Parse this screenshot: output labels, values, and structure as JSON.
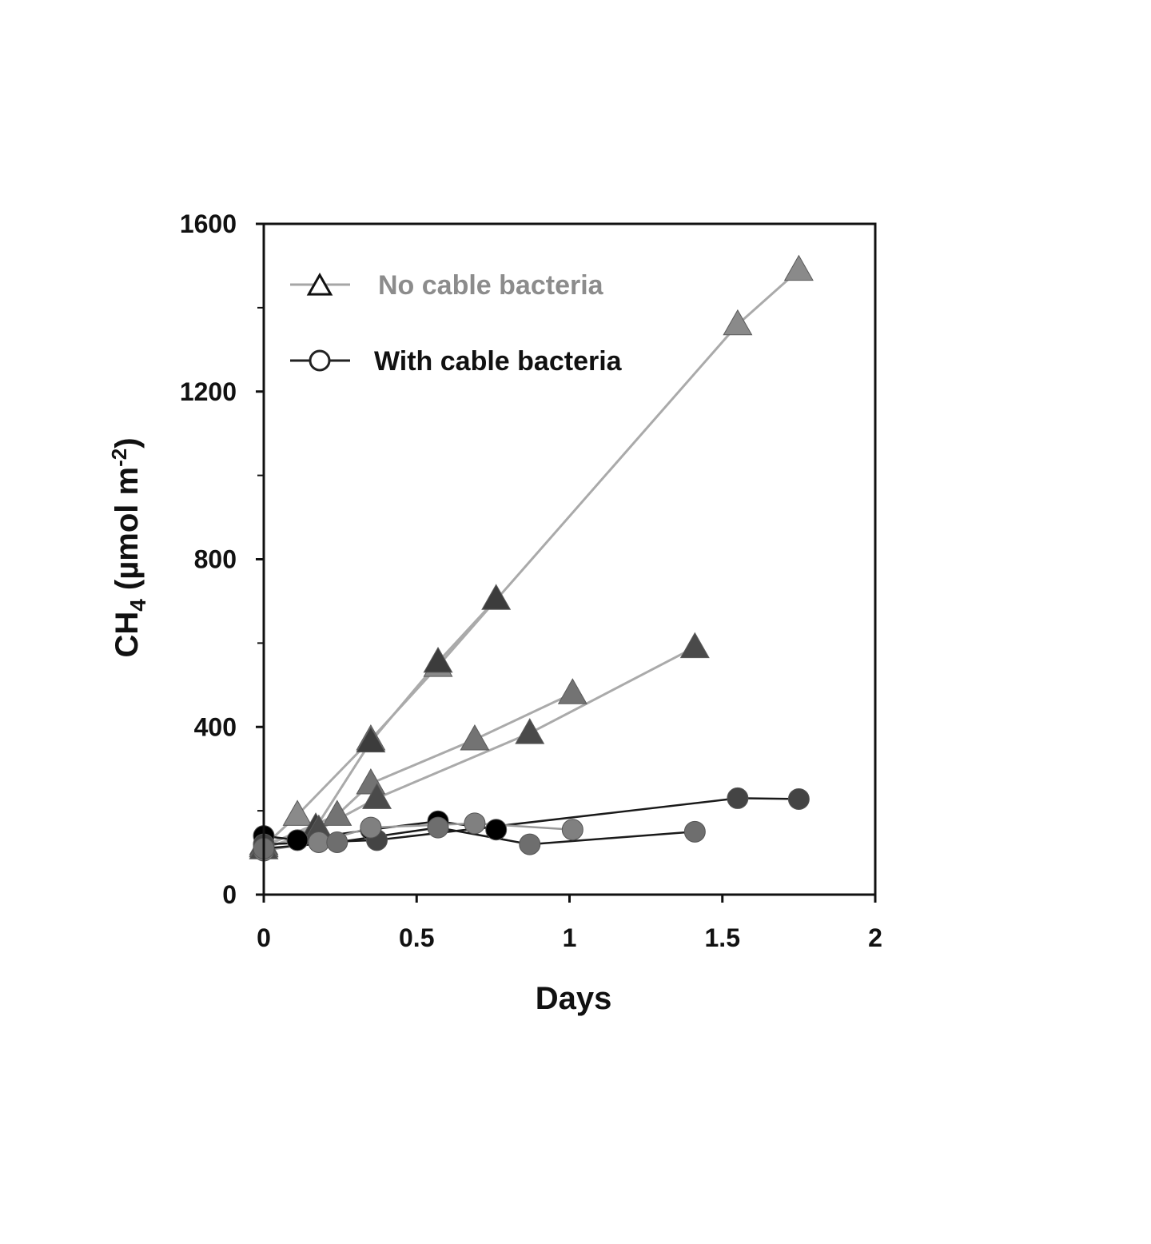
{
  "chart_data": {
    "type": "line",
    "xlabel": "Days",
    "ylabel": {
      "base": "CH",
      "sub": "4",
      "mid": " (µmol m",
      "sup": "-2",
      "end": ")"
    },
    "xlim": [
      0,
      2
    ],
    "ylim": [
      0,
      1600
    ],
    "x_ticks": [
      0,
      0.5,
      1,
      1.5,
      2
    ],
    "x_tick_labels": [
      "0",
      "0.5",
      "1",
      "1.5",
      "2"
    ],
    "y_ticks": [
      0,
      400,
      800,
      1200,
      1600
    ],
    "y_tick_labels": [
      "0",
      "400",
      "800",
      "1200",
      "1600"
    ],
    "y_minor_ticks": [
      200,
      600,
      1000,
      1400
    ],
    "grid": false,
    "legend_position": "top-left",
    "legend": [
      {
        "label": "No cable bacteria",
        "marker": "triangle",
        "line_color": "#a6a6a6",
        "text_color": "#8c8c8c"
      },
      {
        "label": "With cable bacteria",
        "marker": "circle",
        "line_color": "#222222",
        "text_color": "#111111"
      }
    ],
    "series": [
      {
        "group": "No cable bacteria",
        "marker": "triangle",
        "line_color": "#aaaaaa",
        "marker_color": "#8a8a8a",
        "x": [
          0,
          0.11,
          0.35,
          0.57,
          1.55,
          1.75
        ],
        "y": [
          115,
          190,
          370,
          545,
          1360,
          1490
        ]
      },
      {
        "group": "No cable bacteria",
        "marker": "triangle",
        "line_color": "#aaaaaa",
        "marker_color": "#3c3c3c",
        "x": [
          0,
          0.17,
          0.35,
          0.57,
          0.76
        ],
        "y": [
          120,
          160,
          365,
          555,
          705
        ]
      },
      {
        "group": "No cable bacteria",
        "marker": "triangle",
        "line_color": "#aaaaaa",
        "marker_color": "#737373",
        "x": [
          0,
          0.24,
          0.35,
          0.69,
          1.01
        ],
        "y": [
          115,
          190,
          265,
          370,
          480
        ]
      },
      {
        "group": "No cable bacteria",
        "marker": "triangle",
        "line_color": "#aaaaaa",
        "marker_color": "#4a4a4a",
        "x": [
          0,
          0.18,
          0.37,
          0.87,
          1.41
        ],
        "y": [
          110,
          155,
          230,
          385,
          590
        ]
      },
      {
        "group": "With cable bacteria",
        "marker": "circle",
        "line_color": "#1a1a1a",
        "marker_color": "#000000",
        "x": [
          0,
          0.11,
          0.35,
          0.57,
          0.76
        ],
        "y": [
          140,
          130,
          155,
          175,
          155
        ]
      },
      {
        "group": "With cable bacteria",
        "marker": "circle",
        "line_color": "#1a1a1a",
        "marker_color": "#444444",
        "x": [
          0,
          0.37,
          1.55,
          1.75
        ],
        "y": [
          120,
          130,
          230,
          228
        ]
      },
      {
        "group": "With cable bacteria",
        "marker": "circle",
        "line_color": "#999999",
        "marker_color": "#808080",
        "x": [
          0,
          0.18,
          0.35,
          0.69,
          1.01
        ],
        "y": [
          105,
          125,
          160,
          170,
          155
        ]
      },
      {
        "group": "With cable bacteria",
        "marker": "circle",
        "line_color": "#1a1a1a",
        "marker_color": "#6e6e6e",
        "x": [
          0,
          0.24,
          0.57,
          0.87,
          1.41
        ],
        "y": [
          110,
          125,
          160,
          120,
          150
        ]
      }
    ]
  }
}
